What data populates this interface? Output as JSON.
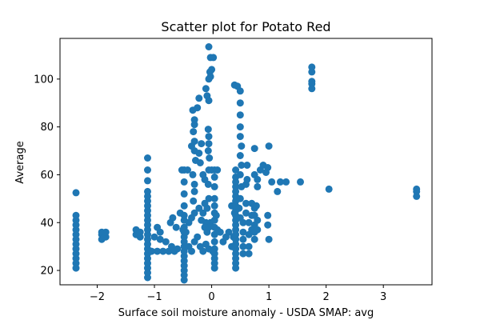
{
  "chart_data": {
    "type": "scatter",
    "title": "Scatter plot for Potato Red",
    "xlabel": "Surface soil moisture anomaly  - USDA SMAP: avg",
    "ylabel": "Average",
    "xlim": [
      -2.65,
      3.85
    ],
    "ylim": [
      14,
      117
    ],
    "xticks": [
      -2,
      -1,
      0,
      1,
      2,
      3
    ],
    "xtick_labels": [
      "−2",
      "−1",
      "0",
      "1",
      "2",
      "3"
    ],
    "yticks": [
      20,
      40,
      60,
      80,
      100
    ],
    "ytick_labels": [
      "20",
      "40",
      "60",
      "80",
      "100"
    ],
    "grid": false,
    "marker_color": "#1f77b4",
    "points": [
      [
        -2.37,
        21
      ],
      [
        -2.37,
        23
      ],
      [
        -2.37,
        25
      ],
      [
        -2.37,
        27
      ],
      [
        -2.37,
        29
      ],
      [
        -2.37,
        31
      ],
      [
        -2.37,
        33
      ],
      [
        -2.37,
        35
      ],
      [
        -2.37,
        37
      ],
      [
        -2.37,
        39
      ],
      [
        -2.37,
        41
      ],
      [
        -2.37,
        43
      ],
      [
        -2.37,
        52.5
      ],
      [
        -1.92,
        33
      ],
      [
        -1.92,
        35
      ],
      [
        -1.92,
        36
      ],
      [
        -1.85,
        34
      ],
      [
        -1.85,
        36
      ],
      [
        -1.32,
        35
      ],
      [
        -1.32,
        37
      ],
      [
        -1.25,
        34
      ],
      [
        -1.25,
        36
      ],
      [
        -1.12,
        17
      ],
      [
        -1.12,
        19
      ],
      [
        -1.12,
        21
      ],
      [
        -1.12,
        23
      ],
      [
        -1.12,
        25
      ],
      [
        -1.12,
        27
      ],
      [
        -1.12,
        29
      ],
      [
        -1.12,
        31
      ],
      [
        -1.12,
        33
      ],
      [
        -1.12,
        35
      ],
      [
        -1.12,
        37
      ],
      [
        -1.12,
        39
      ],
      [
        -1.12,
        41
      ],
      [
        -1.12,
        43
      ],
      [
        -1.12,
        45
      ],
      [
        -1.12,
        47
      ],
      [
        -1.12,
        49
      ],
      [
        -1.12,
        51
      ],
      [
        -1.12,
        53
      ],
      [
        -1.12,
        57.5
      ],
      [
        -1.12,
        62
      ],
      [
        -1.12,
        67
      ],
      [
        -1.05,
        28
      ],
      [
        -1.0,
        34
      ],
      [
        -0.95,
        28
      ],
      [
        -0.9,
        33
      ],
      [
        -0.85,
        28
      ],
      [
        -0.8,
        32
      ],
      [
        -0.75,
        28
      ],
      [
        -0.7,
        30
      ],
      [
        -0.65,
        28
      ],
      [
        -0.6,
        29
      ],
      [
        -0.95,
        38
      ],
      [
        -0.9,
        36
      ],
      [
        -0.72,
        40
      ],
      [
        -0.68,
        42
      ],
      [
        -0.62,
        38
      ],
      [
        -0.5,
        37
      ],
      [
        -0.55,
        44
      ],
      [
        -0.48,
        16
      ],
      [
        -0.48,
        18
      ],
      [
        -0.48,
        20
      ],
      [
        -0.48,
        22
      ],
      [
        -0.48,
        24
      ],
      [
        -0.48,
        26
      ],
      [
        -0.48,
        28
      ],
      [
        -0.48,
        30
      ],
      [
        -0.48,
        32
      ],
      [
        -0.48,
        34
      ],
      [
        -0.48,
        36
      ],
      [
        -0.48,
        38
      ],
      [
        -0.48,
        41
      ],
      [
        -0.48,
        43
      ],
      [
        -0.48,
        47
      ],
      [
        -0.48,
        52
      ],
      [
        -0.48,
        57
      ],
      [
        -0.48,
        62
      ],
      [
        -0.52,
        62
      ],
      [
        -0.42,
        62
      ],
      [
        -0.45,
        36
      ],
      [
        -0.4,
        30
      ],
      [
        -0.35,
        28
      ],
      [
        -0.3,
        32
      ],
      [
        -0.25,
        34
      ],
      [
        -0.2,
        30
      ],
      [
        -0.15,
        28
      ],
      [
        -0.1,
        31
      ],
      [
        -0.05,
        29
      ],
      [
        -0.4,
        40
      ],
      [
        -0.35,
        42
      ],
      [
        -0.3,
        44
      ],
      [
        -0.22,
        46
      ],
      [
        -0.18,
        41
      ],
      [
        -0.12,
        38
      ],
      [
        -0.08,
        36
      ],
      [
        -0.02,
        40
      ],
      [
        -0.32,
        49
      ],
      [
        -0.3,
        53
      ],
      [
        -0.3,
        56
      ],
      [
        -0.33,
        60
      ],
      [
        -0.28,
        66
      ],
      [
        -0.3,
        70
      ],
      [
        -0.35,
        72
      ],
      [
        -0.3,
        74
      ],
      [
        -0.32,
        78
      ],
      [
        -0.3,
        81
      ],
      [
        -0.3,
        83
      ],
      [
        -0.33,
        87
      ],
      [
        -0.25,
        88
      ],
      [
        -0.22,
        92
      ],
      [
        -0.22,
        69
      ],
      [
        -0.2,
        65
      ],
      [
        -0.18,
        73
      ],
      [
        -0.15,
        60
      ],
      [
        -0.12,
        58
      ],
      [
        -0.1,
        96
      ],
      [
        -0.08,
        93
      ],
      [
        -0.05,
        91
      ],
      [
        -0.05,
        100
      ],
      [
        -0.03,
        103
      ],
      [
        -0.05,
        50
      ],
      [
        -0.06,
        56
      ],
      [
        -0.05,
        62
      ],
      [
        -0.04,
        67
      ],
      [
        -0.06,
        70
      ],
      [
        -0.05,
        73
      ],
      [
        -0.05,
        76
      ],
      [
        -0.06,
        79
      ],
      [
        -0.02,
        109
      ],
      [
        -0.05,
        113.5
      ],
      [
        0.03,
        109
      ],
      [
        0.0,
        104
      ],
      [
        -0.02,
        101
      ],
      [
        -0.1,
        40
      ],
      [
        -0.15,
        44
      ],
      [
        -0.08,
        46
      ],
      [
        -0.12,
        48
      ],
      [
        -0.05,
        38
      ],
      [
        0.05,
        21
      ],
      [
        0.05,
        23
      ],
      [
        0.05,
        25
      ],
      [
        0.05,
        27
      ],
      [
        0.05,
        29
      ],
      [
        0.05,
        32
      ],
      [
        0.05,
        35
      ],
      [
        0.05,
        38
      ],
      [
        0.05,
        41
      ],
      [
        0.05,
        44
      ],
      [
        0.05,
        47
      ],
      [
        0.05,
        50
      ],
      [
        0.05,
        55
      ],
      [
        0.05,
        59
      ],
      [
        0.05,
        62
      ],
      [
        0.02,
        28
      ],
      [
        0.1,
        37
      ],
      [
        0.08,
        43
      ],
      [
        0.0,
        62
      ],
      [
        0.1,
        62
      ],
      [
        0.15,
        36
      ],
      [
        0.2,
        32
      ],
      [
        0.25,
        34
      ],
      [
        0.3,
        36
      ],
      [
        0.35,
        30
      ],
      [
        0.38,
        34
      ],
      [
        0.4,
        44
      ],
      [
        0.35,
        47
      ],
      [
        0.42,
        21
      ],
      [
        0.42,
        23
      ],
      [
        0.42,
        25
      ],
      [
        0.42,
        27
      ],
      [
        0.42,
        29
      ],
      [
        0.42,
        31
      ],
      [
        0.42,
        33
      ],
      [
        0.42,
        35
      ],
      [
        0.42,
        37
      ],
      [
        0.42,
        39
      ],
      [
        0.42,
        41
      ],
      [
        0.42,
        43
      ],
      [
        0.42,
        45
      ],
      [
        0.42,
        47
      ],
      [
        0.42,
        49
      ],
      [
        0.42,
        51
      ],
      [
        0.42,
        53
      ],
      [
        0.42,
        55
      ],
      [
        0.42,
        57
      ],
      [
        0.42,
        59
      ],
      [
        0.42,
        62
      ],
      [
        0.4,
        97.5
      ],
      [
        0.45,
        97
      ],
      [
        0.5,
        95
      ],
      [
        0.5,
        90
      ],
      [
        0.5,
        85
      ],
      [
        0.5,
        80
      ],
      [
        0.5,
        76
      ],
      [
        0.52,
        72
      ],
      [
        0.5,
        68
      ],
      [
        0.52,
        64
      ],
      [
        0.5,
        60
      ],
      [
        0.52,
        55
      ],
      [
        0.5,
        50
      ],
      [
        0.48,
        46
      ],
      [
        0.5,
        42
      ],
      [
        0.55,
        40
      ],
      [
        0.55,
        36
      ],
      [
        0.55,
        33
      ],
      [
        0.55,
        30
      ],
      [
        0.55,
        27
      ],
      [
        0.6,
        44
      ],
      [
        0.6,
        48
      ],
      [
        0.6,
        56
      ],
      [
        0.62,
        58
      ],
      [
        0.62,
        64
      ],
      [
        0.65,
        40
      ],
      [
        0.65,
        35
      ],
      [
        0.65,
        30
      ],
      [
        0.65,
        27
      ],
      [
        0.7,
        37
      ],
      [
        0.7,
        43
      ],
      [
        0.7,
        48
      ],
      [
        0.75,
        46
      ],
      [
        0.75,
        43
      ],
      [
        0.75,
        39
      ],
      [
        0.75,
        36
      ],
      [
        0.75,
        33
      ],
      [
        0.78,
        47
      ],
      [
        0.8,
        41
      ],
      [
        0.8,
        37
      ],
      [
        0.8,
        55
      ],
      [
        0.75,
        60
      ],
      [
        0.8,
        58
      ],
      [
        0.75,
        71
      ],
      [
        0.85,
        62
      ],
      [
        0.9,
        64
      ],
      [
        0.95,
        61
      ],
      [
        0.98,
        63
      ],
      [
        0.98,
        39
      ],
      [
        0.98,
        43
      ],
      [
        1.0,
        33
      ],
      [
        1.0,
        72
      ],
      [
        1.05,
        57
      ],
      [
        1.15,
        53
      ],
      [
        1.2,
        57
      ],
      [
        1.3,
        57
      ],
      [
        1.55,
        57
      ],
      [
        1.75,
        96
      ],
      [
        1.75,
        98
      ],
      [
        1.75,
        99
      ],
      [
        1.75,
        103
      ],
      [
        1.75,
        105
      ],
      [
        2.05,
        54
      ],
      [
        3.58,
        51
      ],
      [
        3.58,
        53
      ],
      [
        3.58,
        54
      ]
    ]
  }
}
